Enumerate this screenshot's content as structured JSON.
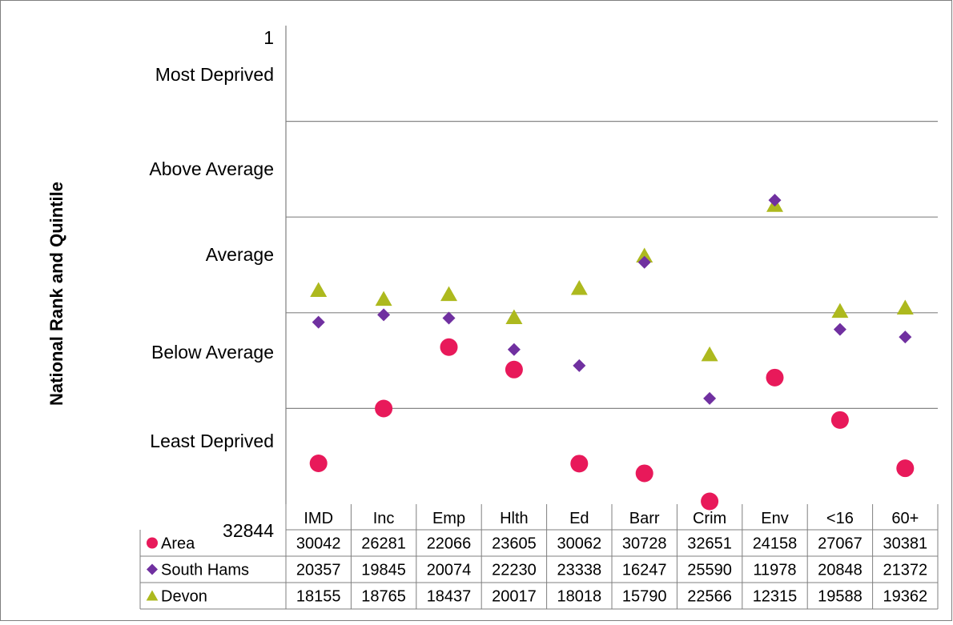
{
  "chart_data": {
    "type": "scatter",
    "ylabel": "National Rank and Quintile",
    "y_axis": {
      "min_rank": 1,
      "max_rank": 32844,
      "top_label": "1",
      "bottom_label": "32844",
      "inverted": true,
      "band_labels": [
        "Most Deprived",
        "Above Average",
        "Average",
        "Below Average",
        "Least Deprived"
      ]
    },
    "categories": [
      "IMD",
      "Inc",
      "Emp",
      "Hlth",
      "Ed",
      "Barr",
      "Crim",
      "Env",
      "<16",
      "60+"
    ],
    "series": [
      {
        "name": "Area",
        "marker": "circle",
        "color": "#e8195a",
        "values": [
          30042,
          26281,
          22066,
          23605,
          30062,
          30728,
          32651,
          24158,
          27067,
          30381
        ]
      },
      {
        "name": "South Hams",
        "marker": "diamond",
        "color": "#7030a0",
        "values": [
          20357,
          19845,
          20074,
          22230,
          23338,
          16247,
          25590,
          11978,
          20848,
          21372
        ]
      },
      {
        "name": "Devon",
        "marker": "triangle",
        "color": "#adb91e",
        "values": [
          18155,
          18765,
          18437,
          20017,
          18018,
          15790,
          22566,
          12315,
          19588,
          19362
        ]
      }
    ],
    "grid": "horizontal quintile lines",
    "legend": "data table below plot"
  }
}
